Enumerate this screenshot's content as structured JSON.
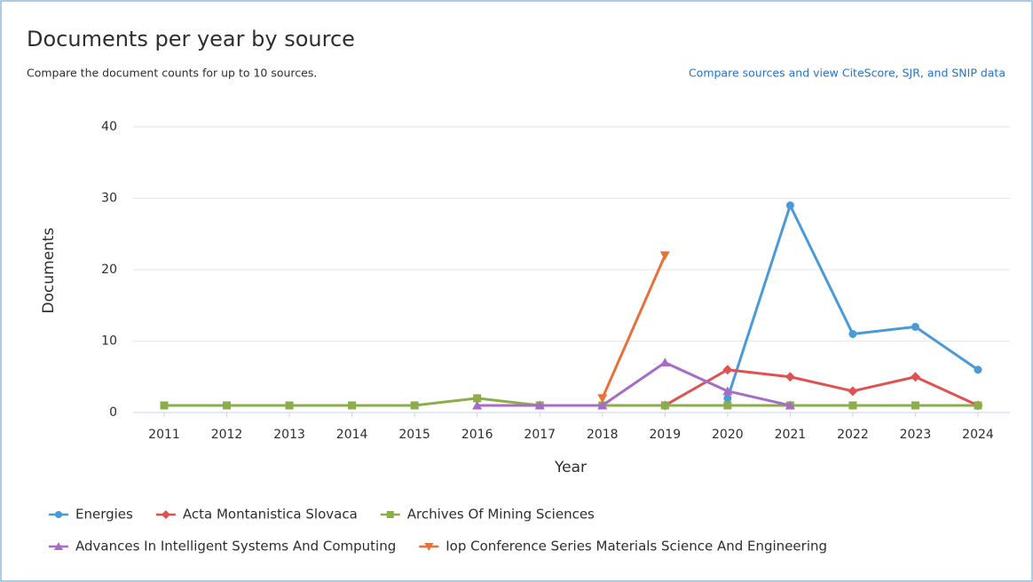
{
  "link": "Compare sources and view CiteScore, SJR, and SNIP data",
  "chart_data": {
    "type": "line",
    "title": "Documents per year by source",
    "subtitle": "Compare the document counts for up to 10 sources.",
    "xlabel": "Year",
    "ylabel": "Documents",
    "x": [
      2011,
      2012,
      2013,
      2014,
      2015,
      2016,
      2017,
      2018,
      2019,
      2020,
      2021,
      2022,
      2023,
      2024
    ],
    "xlim": [
      2011,
      2024
    ],
    "xticks": [
      2011,
      2012,
      2013,
      2014,
      2015,
      2016,
      2017,
      2018,
      2019,
      2020,
      2021,
      2022,
      2023,
      2024
    ],
    "ylim": [
      0,
      40
    ],
    "yticks": [
      0,
      10,
      20,
      30,
      40
    ],
    "grid": true,
    "legend": "bottom",
    "series": [
      {
        "name": "Energies",
        "color": "#4a9ad8",
        "marker": "circle",
        "values": [
          null,
          null,
          null,
          null,
          null,
          null,
          null,
          null,
          null,
          2,
          29,
          11,
          12,
          6
        ]
      },
      {
        "name": "Acta Montanistica Slovaca",
        "color": "#e05252",
        "marker": "diamond",
        "values": [
          null,
          null,
          null,
          null,
          null,
          null,
          null,
          null,
          1,
          6,
          5,
          3,
          5,
          1
        ]
      },
      {
        "name": "Archives Of Mining Sciences",
        "color": "#8cae4a",
        "marker": "square",
        "values": [
          1,
          1,
          1,
          1,
          1,
          2,
          1,
          1,
          1,
          1,
          1,
          1,
          1,
          1
        ]
      },
      {
        "name": "Advances In Intelligent Systems And Computing",
        "color": "#a66cc8",
        "marker": "triangle",
        "values": [
          null,
          null,
          null,
          null,
          null,
          1,
          1,
          1,
          7,
          3,
          1,
          null,
          null,
          null
        ]
      },
      {
        "name": "Iop Conference Series Materials Science And Engineering",
        "color": "#e8703a",
        "marker": "triangle-down",
        "values": [
          null,
          null,
          null,
          null,
          null,
          null,
          null,
          2,
          22,
          null,
          null,
          null,
          null,
          null
        ]
      }
    ]
  }
}
